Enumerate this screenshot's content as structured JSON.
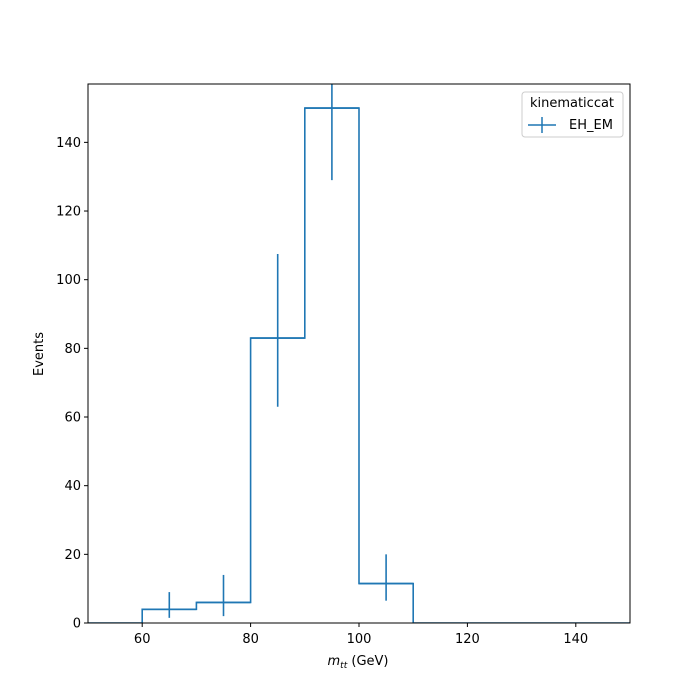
{
  "chart_data": {
    "type": "histogram-step",
    "xlabel_main": "m",
    "xlabel_sub": "tt",
    "xlabel_unit": " (GeV)",
    "ylabel": "Events",
    "xlim": [
      50,
      150
    ],
    "ylim": [
      0,
      157
    ],
    "xticks": [
      60,
      80,
      100,
      120,
      140
    ],
    "yticks": [
      0,
      20,
      40,
      60,
      80,
      100,
      120,
      140
    ],
    "bin_edges": [
      50,
      60,
      70,
      80,
      90,
      100,
      110,
      120,
      130,
      140,
      150
    ],
    "series": [
      {
        "name": "EH_EM",
        "color": "#1f77b4",
        "values": [
          0,
          4,
          6,
          83,
          150,
          11.5,
          0,
          0,
          0,
          0
        ],
        "errors": [
          {
            "x": 65,
            "low": 1.5,
            "high": 9
          },
          {
            "x": 75,
            "low": 2,
            "high": 14
          },
          {
            "x": 85,
            "low": 63,
            "high": 107.5
          },
          {
            "x": 95,
            "low": 129,
            "high": 160
          },
          {
            "x": 105,
            "low": 6.5,
            "high": 20
          }
        ]
      }
    ],
    "legend": {
      "title": "kinematiccat",
      "position": "upper-right"
    }
  }
}
